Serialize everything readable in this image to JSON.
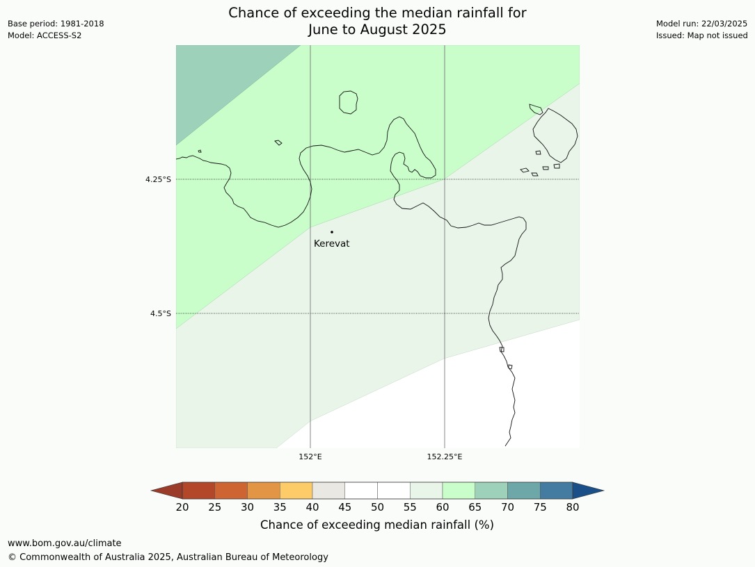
{
  "header": {
    "base_period": "Base period: 1981-2018",
    "model": "Model: ACCESS-S2",
    "model_run": "Model run: 22/03/2025",
    "issued": "Issued: Map not issued"
  },
  "title": {
    "line1": "Chance of exceeding the median rainfall for",
    "line2": "June to August 2025"
  },
  "map": {
    "lat_labels": [
      "4.25°S",
      "4.5°S"
    ],
    "lon_labels": [
      "152°E",
      "152.25°E"
    ],
    "place": "Kerevat",
    "colors": {
      "ocean_bg": "#ffffff",
      "band_60_65": "#c9fdca",
      "band_55_60": "#e9f5e9",
      "band_65_70": "#9dd1ba"
    }
  },
  "colorbar": {
    "ticks": [
      "20",
      "25",
      "30",
      "35",
      "40",
      "45",
      "50",
      "55",
      "60",
      "65",
      "70",
      "75",
      "80"
    ],
    "colors": [
      "#b2472a",
      "#cd6432",
      "#e19545",
      "#fdcc69",
      "#eae8e3",
      "#ffffff",
      "#ffffff",
      "#e9f5e9",
      "#c9fdca",
      "#9dd1ba",
      "#6da7a7",
      "#447ba0"
    ],
    "under_color": "#9b3b2a",
    "over_color": "#1a4f88",
    "label": "Chance of exceeding median rainfall (%)"
  },
  "footer": {
    "url": "www.bom.gov.au/climate",
    "copyright": "© Commonwealth of Australia 2025, Australian Bureau of Meteorology"
  }
}
